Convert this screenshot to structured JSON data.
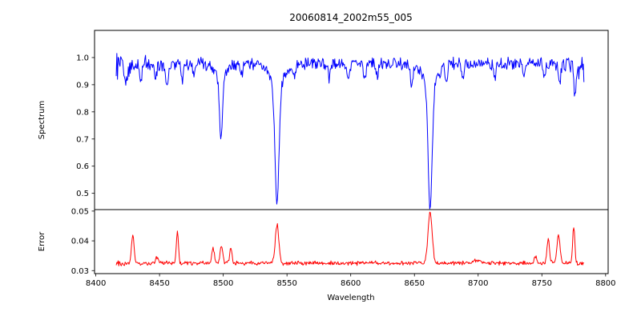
{
  "figure": {
    "title": "20060814_2002m55_005",
    "background": "#ffffff"
  },
  "chart_data": {
    "type": "line",
    "title": "20060814_2002m55_005",
    "xlabel": "Wavelength",
    "grid": false,
    "legend": null,
    "xlim": [
      8399,
      8802
    ],
    "x_data_range": [
      8416,
      8783
    ],
    "x_step": 0.5,
    "x_ticks": {
      "values": [
        8400,
        8450,
        8500,
        8550,
        8600,
        8650,
        8700,
        8750,
        8800
      ],
      "labels": [
        "8400",
        "8450",
        "8500",
        "8550",
        "8600",
        "8650",
        "8700",
        "8750",
        "8800"
      ]
    },
    "panels": [
      {
        "name": "spectrum",
        "ylabel": "Spectrum",
        "line_color": "#0000ff",
        "ylim": [
          0.44,
          1.1
        ],
        "y_ticks": {
          "values": [
            0.5,
            0.6,
            0.7,
            0.8,
            0.9,
            1.0
          ],
          "labels": [
            "0.5",
            "0.6",
            "0.7",
            "0.8",
            "0.9",
            "1.0"
          ]
        },
        "model": {
          "baseline": 0.978,
          "noise_amplitude": 0.026,
          "edge_noise_boost": 1.8,
          "edge_scale": 14,
          "seed": 12,
          "features": [
            {
              "center": 8424,
              "amplitude": -0.06,
              "sigma": 1.0
            },
            {
              "center": 8435,
              "amplitude": -0.07,
              "sigma": 0.9
            },
            {
              "center": 8447,
              "amplitude": -0.05,
              "sigma": 0.9
            },
            {
              "center": 8456,
              "amplitude": -0.09,
              "sigma": 1.0
            },
            {
              "center": 8468,
              "amplitude": -0.06,
              "sigma": 0.9
            },
            {
              "center": 8477,
              "amplitude": -0.05,
              "sigma": 0.8
            },
            {
              "center": 8498.2,
              "amplitude": -0.24,
              "sigma": 1.2,
              "label": "Ca II 8498"
            },
            {
              "center": 8498.2,
              "amplitude": -0.04,
              "sigma": 5.0
            },
            {
              "center": 8514,
              "amplitude": -0.05,
              "sigma": 0.9
            },
            {
              "center": 8542.2,
              "amplitude": -0.45,
              "sigma": 1.6,
              "label": "Ca II 8542"
            },
            {
              "center": 8542.2,
              "amplitude": -0.07,
              "sigma": 6.0
            },
            {
              "center": 8556,
              "amplitude": -0.04,
              "sigma": 0.8
            },
            {
              "center": 8583,
              "amplitude": -0.05,
              "sigma": 0.9
            },
            {
              "center": 8598,
              "amplitude": -0.06,
              "sigma": 1.0
            },
            {
              "center": 8611,
              "amplitude": -0.05,
              "sigma": 0.9
            },
            {
              "center": 8621,
              "amplitude": -0.05,
              "sigma": 0.9
            },
            {
              "center": 8648,
              "amplitude": -0.08,
              "sigma": 1.0
            },
            {
              "center": 8662.3,
              "amplitude": -0.46,
              "sigma": 1.6,
              "label": "Ca II 8662"
            },
            {
              "center": 8662.3,
              "amplitude": -0.07,
              "sigma": 6.0
            },
            {
              "center": 8675,
              "amplitude": -0.05,
              "sigma": 0.9
            },
            {
              "center": 8688,
              "amplitude": -0.06,
              "sigma": 0.9
            },
            {
              "center": 8713,
              "amplitude": -0.05,
              "sigma": 0.9
            },
            {
              "center": 8736,
              "amplitude": -0.05,
              "sigma": 0.9
            },
            {
              "center": 8752,
              "amplitude": -0.06,
              "sigma": 0.9
            },
            {
              "center": 8764,
              "amplitude": -0.07,
              "sigma": 1.0
            },
            {
              "center": 8776,
              "amplitude": -0.08,
              "sigma": 1.0
            }
          ]
        }
      },
      {
        "name": "error",
        "ylabel": "Error",
        "line_color": "#ff0000",
        "ylim": [
          0.029,
          0.0505
        ],
        "y_ticks": {
          "values": [
            0.03,
            0.04,
            0.05
          ],
          "labels": [
            "0.03",
            "0.04",
            "0.05"
          ]
        },
        "model": {
          "baseline": 0.0325,
          "noise_amplitude": 0.0008,
          "edge_noise_boost": 0.6,
          "edge_scale": 8,
          "seed": 77,
          "features": [
            {
              "center": 8429,
              "amplitude": 0.0095,
              "sigma": 1.0
            },
            {
              "center": 8448,
              "amplitude": 0.002,
              "sigma": 1.2
            },
            {
              "center": 8464,
              "amplitude": 0.011,
              "sigma": 0.8
            },
            {
              "center": 8492,
              "amplitude": 0.005,
              "sigma": 1.0
            },
            {
              "center": 8498.5,
              "amplitude": 0.0055,
              "sigma": 1.0
            },
            {
              "center": 8506,
              "amplitude": 0.0055,
              "sigma": 0.9
            },
            {
              "center": 8542.2,
              "amplitude": 0.013,
              "sigma": 1.4
            },
            {
              "center": 8662.3,
              "amplitude": 0.0172,
              "sigma": 1.6
            },
            {
              "center": 8700,
              "amplitude": 0.001,
              "sigma": 3.0
            },
            {
              "center": 8745,
              "amplitude": 0.0025,
              "sigma": 1.0
            },
            {
              "center": 8755,
              "amplitude": 0.008,
              "sigma": 1.0
            },
            {
              "center": 8763,
              "amplitude": 0.0092,
              "sigma": 1.2
            },
            {
              "center": 8775,
              "amplitude": 0.0125,
              "sigma": 0.8
            }
          ]
        }
      }
    ]
  }
}
